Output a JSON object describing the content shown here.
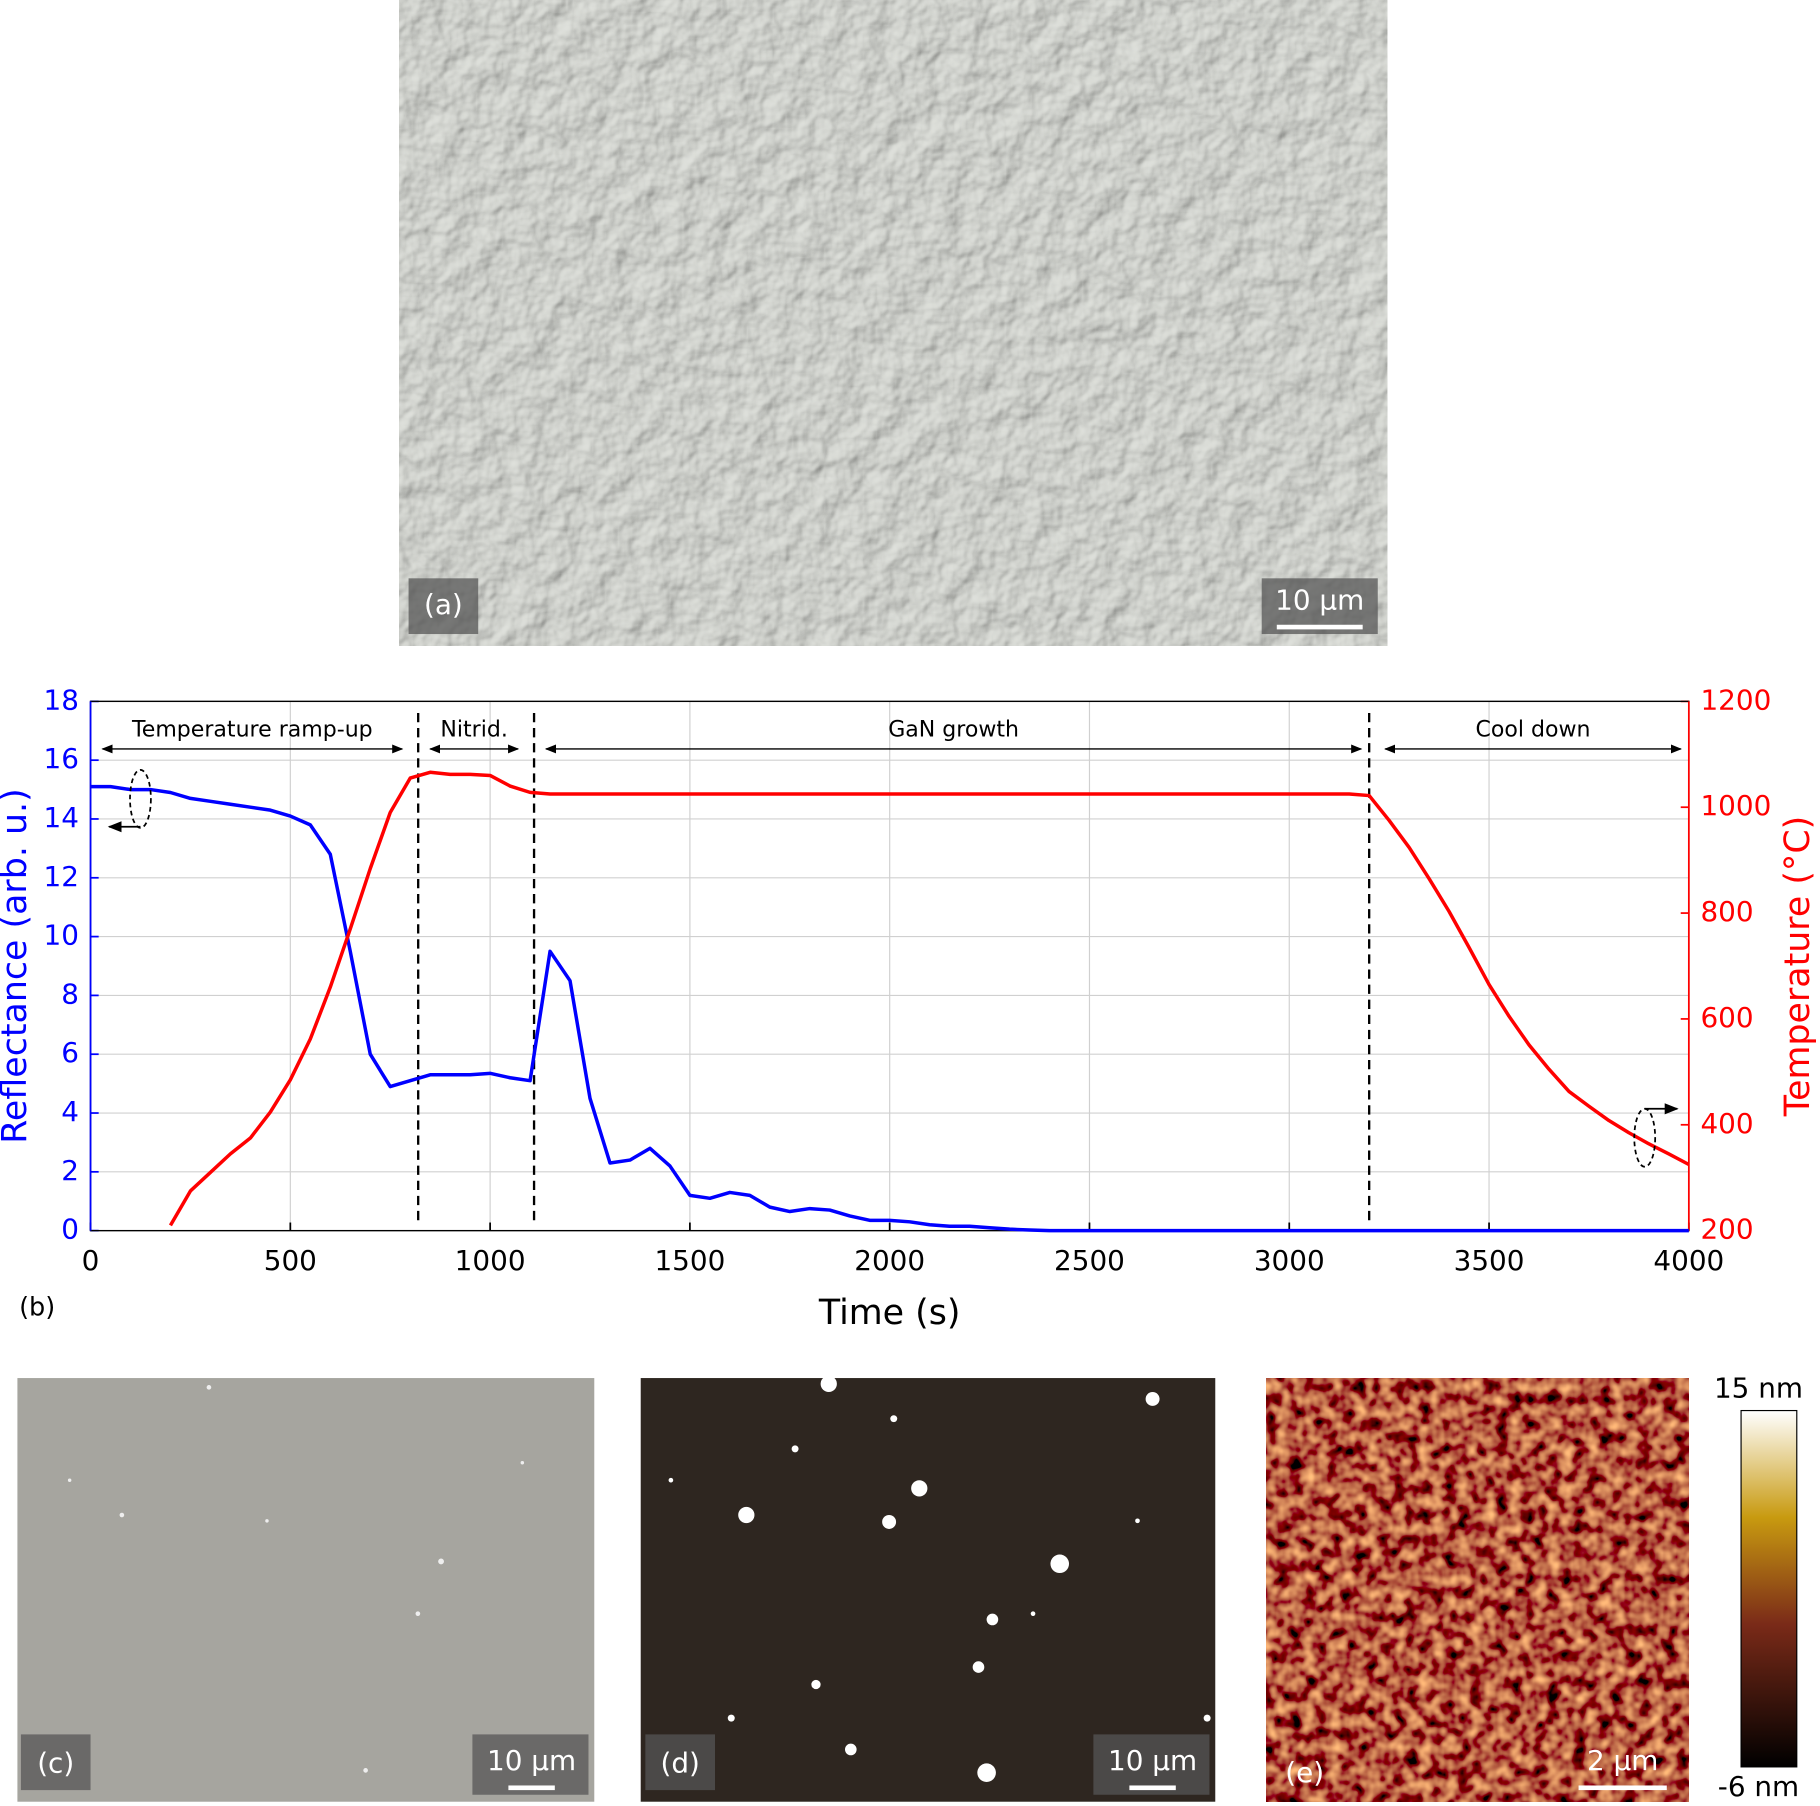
{
  "panels": {
    "a": {
      "label": "(a)",
      "scale_bar": "10 µm"
    },
    "b": {
      "label": "(b)"
    },
    "c": {
      "label": "(c)",
      "scale_bar": "10 µm"
    },
    "d": {
      "label": "(d)",
      "scale_bar": "10 µm"
    },
    "e": {
      "label": "(e)",
      "scale_bar": "2 µm",
      "colorbar_max": "15 nm",
      "colorbar_min": "-6 nm"
    }
  },
  "chart_data": {
    "type": "line",
    "xlabel": "Time (s)",
    "ylabel": "Reflectance (arb. u.)",
    "y2label": "Temperature (°C)",
    "x": [
      0,
      50,
      100,
      150,
      200,
      250,
      300,
      350,
      400,
      450,
      500,
      550,
      600,
      650,
      700,
      750,
      800,
      850,
      900,
      950,
      1000,
      1050,
      1100,
      1150,
      1200,
      1250,
      1300,
      1350,
      1400,
      1450,
      1500,
      1550,
      1600,
      1650,
      1700,
      1750,
      1800,
      1850,
      1900,
      1950,
      2000,
      2050,
      2100,
      2150,
      2200,
      2250,
      2300,
      2350,
      2400,
      2450,
      2500,
      2550,
      2600,
      2650,
      2700,
      2750,
      2800,
      2850,
      2900,
      2950,
      3000,
      3050,
      3100,
      3150,
      3200,
      3250,
      3300,
      3350,
      3400,
      3450,
      3500,
      3550,
      3600,
      3650,
      3700,
      3750,
      3800,
      3850,
      3900,
      3950,
      4000
    ],
    "series": [
      {
        "color": "#0000ff",
        "values": [
          15.1,
          15.1,
          15.0,
          15.0,
          14.9,
          14.7,
          14.6,
          14.5,
          14.4,
          14.3,
          14.1,
          13.8,
          12.8,
          9.5,
          6.0,
          4.9,
          5.1,
          5.3,
          5.3,
          5.3,
          5.35,
          5.2,
          5.1,
          9.5,
          8.5,
          4.5,
          2.3,
          2.4,
          2.8,
          2.2,
          1.2,
          1.1,
          1.3,
          1.2,
          0.8,
          0.65,
          0.75,
          0.7,
          0.5,
          0.35,
          0.35,
          0.3,
          0.2,
          0.15,
          0.15,
          0.1,
          0.05,
          0.02,
          0,
          0,
          0,
          0,
          0,
          0,
          0,
          0,
          0,
          0,
          0,
          0,
          0,
          0,
          0,
          0,
          0,
          0,
          0,
          0,
          0,
          0,
          0,
          0,
          0,
          0,
          0,
          0,
          0,
          0,
          0,
          0,
          0
        ]
      },
      {
        "color": "#ff0000",
        "axis": "y2",
        "values": [
          null,
          null,
          null,
          null,
          210,
          275,
          310,
          345,
          375,
          424,
          485,
          562,
          660,
          770,
          884,
          990,
          1055,
          1066,
          1062,
          1062,
          1060,
          1040,
          1028,
          1025,
          1025,
          1025,
          1025,
          1025,
          1025,
          1025,
          1025,
          1025,
          1025,
          1025,
          1025,
          1025,
          1025,
          1025,
          1025,
          1025,
          1025,
          1025,
          1025,
          1025,
          1025,
          1025,
          1025,
          1025,
          1025,
          1025,
          1025,
          1025,
          1025,
          1025,
          1025,
          1025,
          1025,
          1025,
          1025,
          1025,
          1025,
          1025,
          1025,
          1025,
          1022,
          975,
          924,
          865,
          803,
          735,
          665,
          605,
          551,
          505,
          463,
          435,
          408,
          385,
          364,
          345,
          325
        ]
      }
    ],
    "xlim": [
      0,
      4000
    ],
    "xticks": [
      0,
      500,
      1000,
      1500,
      2000,
      2500,
      3000,
      3500,
      4000
    ],
    "ylim": [
      0,
      18
    ],
    "yticks": [
      0,
      2,
      4,
      6,
      8,
      10,
      12,
      14,
      16,
      18
    ],
    "y2lim": [
      200,
      1200
    ],
    "y2ticks": [
      200,
      400,
      600,
      800,
      1000,
      1200
    ],
    "grid": true,
    "dividers": [
      820,
      1110,
      3200
    ],
    "annotations": [
      {
        "text": "Temperature ramp-up",
        "start": 30,
        "end": 780
      },
      {
        "text": "Nitrid.",
        "start": 850,
        "end": 1070
      },
      {
        "text": "GaN growth",
        "start": 1140,
        "end": 3180
      },
      {
        "text": "Cool down",
        "start": 3240,
        "end": 3980
      }
    ]
  }
}
